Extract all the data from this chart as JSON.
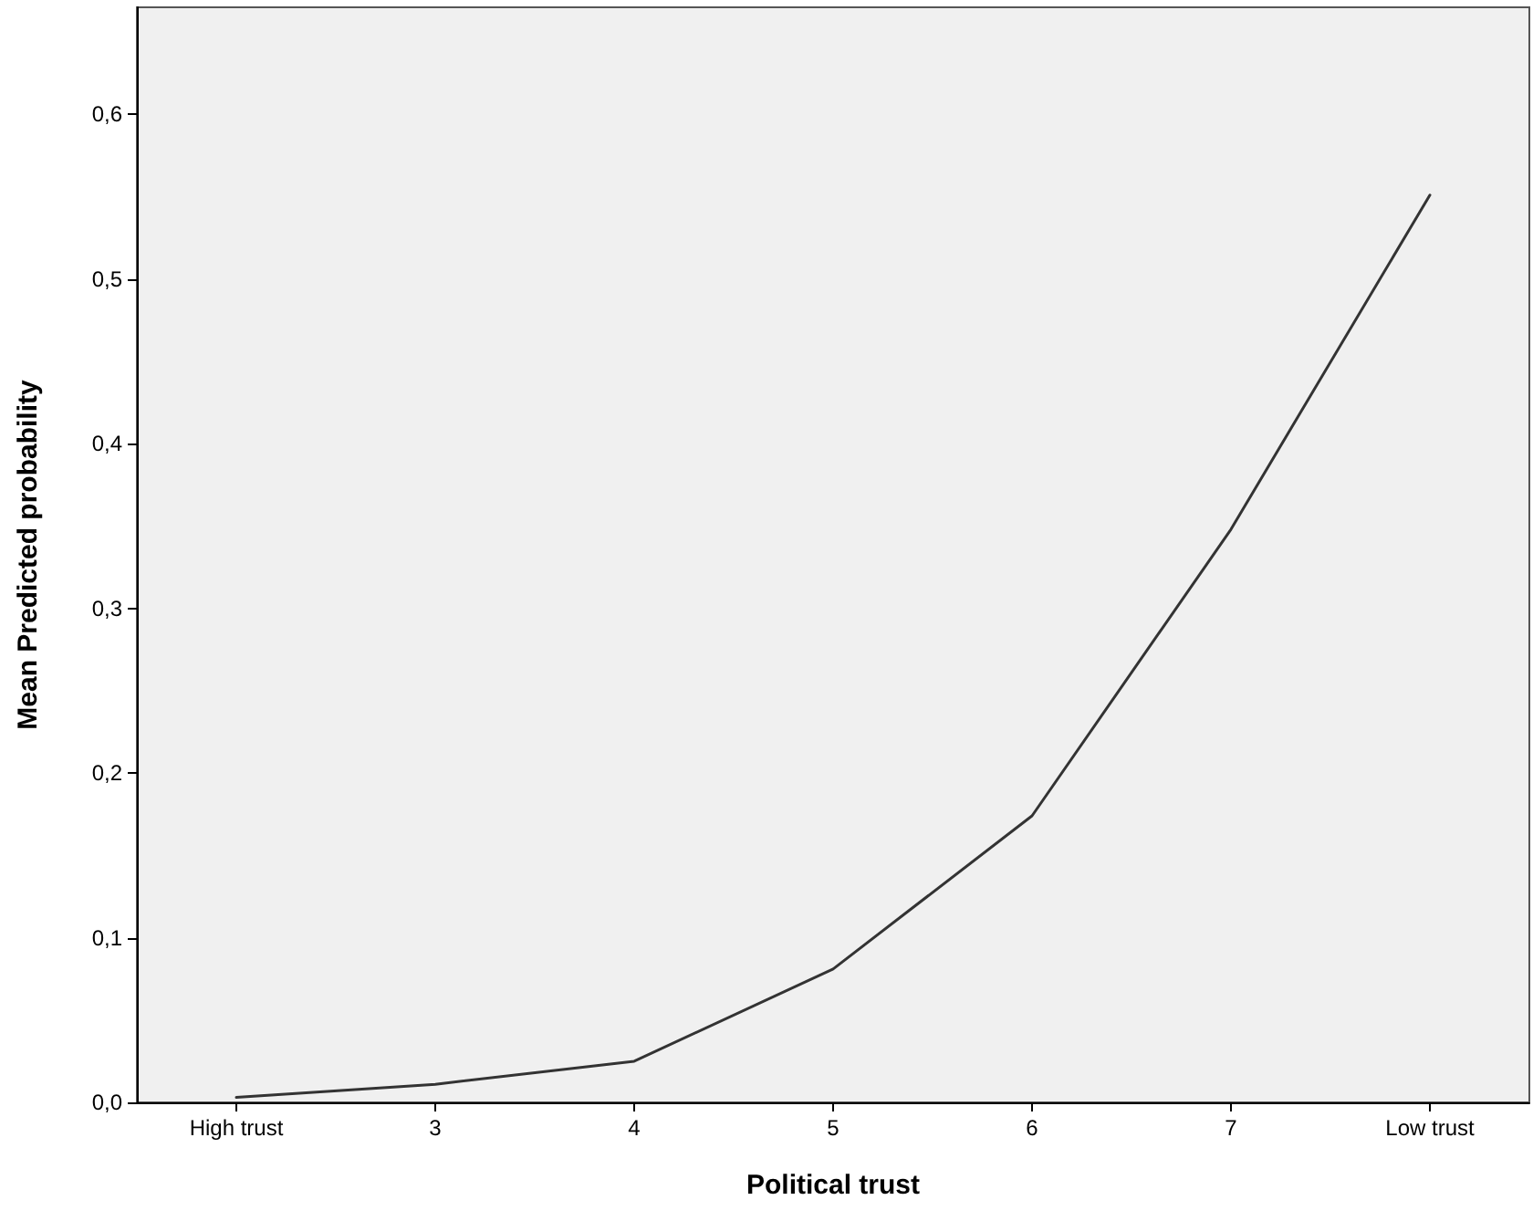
{
  "chart_data": {
    "type": "line",
    "xlabel": "Political trust",
    "ylabel": "Mean Predicted probability",
    "categories": [
      "High trust",
      "3",
      "4",
      "5",
      "6",
      "7",
      "Low trust"
    ],
    "series": [
      {
        "color": "#333333",
        "values": [
          0.003,
          0.011,
          0.025,
          0.081,
          0.174,
          0.348,
          0.551
        ]
      }
    ],
    "ylim": [
      0,
      0.665
    ],
    "yticks": [
      {
        "value": 0,
        "label": "0,0"
      },
      {
        "value": 0.1,
        "label": "0,1"
      },
      {
        "value": 0.2,
        "label": "0,2"
      },
      {
        "value": 0.3,
        "label": "0,3"
      },
      {
        "value": 0.4,
        "label": "0,4"
      },
      {
        "value": 0.5,
        "label": "0,5"
      },
      {
        "value": 0.6,
        "label": "0,6"
      }
    ],
    "grid": false,
    "marker": "none",
    "line_style": "solid"
  }
}
